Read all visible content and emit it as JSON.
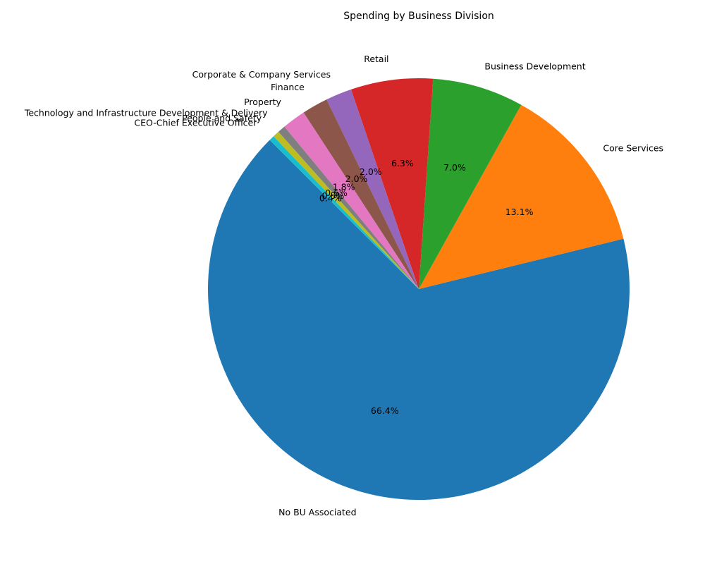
{
  "chart_data": {
    "type": "pie",
    "title": "Spending by Business Division",
    "start_angle_deg": 135,
    "direction": "counterclockwise",
    "slices": [
      {
        "label": "No BU Associated",
        "value": 66.4,
        "pct_label": "66.4%",
        "color": "#1f77b4"
      },
      {
        "label": "Core Services",
        "value": 13.1,
        "pct_label": "13.1%",
        "color": "#ff7f0e"
      },
      {
        "label": "Business Development",
        "value": 7.0,
        "pct_label": "7.0%",
        "color": "#2ca02c"
      },
      {
        "label": "Retail",
        "value": 6.3,
        "pct_label": "6.3%",
        "color": "#d62728"
      },
      {
        "label": "Corporate & Company Services",
        "value": 2.0,
        "pct_label": "2.0%",
        "color": "#9467bd"
      },
      {
        "label": "Finance",
        "value": 2.0,
        "pct_label": "2.0%",
        "color": "#8c564b"
      },
      {
        "label": "Property",
        "value": 1.8,
        "pct_label": "1.8%",
        "color": "#e377c2"
      },
      {
        "label": "Technology and Infrastructure Development & Delivery",
        "value": 0.6,
        "pct_label": "0.6%",
        "color": "#7f7f7f"
      },
      {
        "label": "People and Safety",
        "value": 0.5,
        "pct_label": "0.5%",
        "color": "#bcbd22"
      },
      {
        "label": "CEO-Chief Executive Officer",
        "value": 0.4,
        "pct_label": "0.4%",
        "color": "#17becf"
      }
    ]
  }
}
